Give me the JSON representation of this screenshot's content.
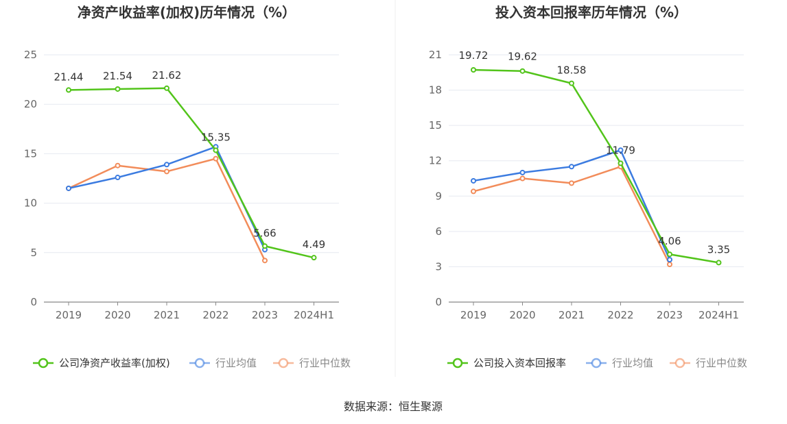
{
  "source": "数据来源：恒生聚源",
  "chart_data": [
    {
      "type": "line",
      "title": "净资产收益率(加权)历年情况（%）",
      "categories": [
        "2019",
        "2020",
        "2021",
        "2022",
        "2023",
        "2024H1"
      ],
      "ylim": [
        0,
        25
      ],
      "yticks": [
        "0",
        "5",
        "10",
        "15",
        "20",
        "25"
      ],
      "grid": true,
      "legend_position": "bottom",
      "series": [
        {
          "name": "公司净资产收益率(加权)",
          "color": "#52c41a",
          "values": [
            21.44,
            21.54,
            21.62,
            15.35,
            5.66,
            4.49
          ],
          "labels": [
            "21.44",
            "21.54",
            "21.62",
            "15.35",
            "5.66",
            "4.49"
          ]
        },
        {
          "name": "行业均值",
          "color": "#3b7be0",
          "values": [
            11.5,
            12.6,
            13.9,
            15.7,
            5.3,
            null
          ]
        },
        {
          "name": "行业中位数",
          "color": "#f28c5a",
          "values": [
            11.5,
            13.8,
            13.2,
            14.5,
            4.2,
            null
          ]
        }
      ]
    },
    {
      "type": "line",
      "title": "投入资本回报率历年情况（%）",
      "categories": [
        "2019",
        "2020",
        "2021",
        "2022",
        "2023",
        "2024H1"
      ],
      "ylim": [
        0,
        21
      ],
      "yticks": [
        "0",
        "3",
        "6",
        "9",
        "12",
        "15",
        "18",
        "21"
      ],
      "grid": true,
      "legend_position": "bottom",
      "series": [
        {
          "name": "公司投入资本回报率",
          "color": "#52c41a",
          "values": [
            19.72,
            19.62,
            18.58,
            11.79,
            4.06,
            3.35
          ],
          "labels": [
            "19.72",
            "19.62",
            "18.58",
            "11.79",
            "4.06",
            "3.35"
          ]
        },
        {
          "name": "行业均值",
          "color": "#3b7be0",
          "values": [
            10.3,
            11.0,
            11.5,
            12.9,
            3.6,
            null
          ]
        },
        {
          "name": "行业中位数",
          "color": "#f28c5a",
          "values": [
            9.4,
            10.5,
            10.1,
            11.5,
            3.2,
            null
          ]
        }
      ]
    }
  ]
}
